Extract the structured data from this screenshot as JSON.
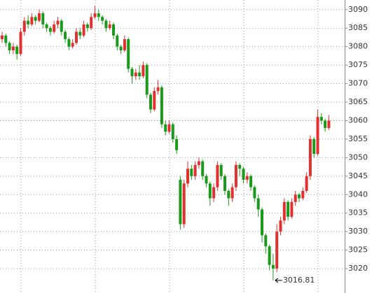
{
  "chart_data": {
    "type": "candlestick",
    "up_color": "#e03030",
    "down_color": "#1a9a1a",
    "ylim": [
      3013.4,
      3092.6
    ],
    "yticks": [
      3020,
      3025,
      3030,
      3035,
      3040,
      3045,
      3050,
      3055,
      3060,
      3065,
      3070,
      3075,
      3080,
      3085,
      3090
    ],
    "grid": true,
    "open": [
      3082,
      3083,
      3081,
      3079,
      3080,
      3078,
      3084,
      3087,
      3086,
      3088,
      3087,
      3089,
      3086,
      3085,
      3084,
      3086,
      3087,
      3084,
      3082,
      3080,
      3081,
      3084,
      3083,
      3086,
      3085,
      3088,
      3089,
      3088,
      3087,
      3085,
      3086,
      3083,
      3080,
      3079,
      3082,
      3074,
      3072,
      3073,
      3072,
      3075,
      3067,
      3063,
      3068,
      3069,
      3059,
      3057,
      3059,
      3055,
      3044,
      3032,
      3043,
      3047,
      3045,
      3048,
      3049,
      3045,
      3043,
      3039,
      3042,
      3048,
      3045,
      3041,
      3039,
      3042,
      3048,
      3047,
      3044,
      3045,
      3042,
      3039,
      3036,
      3029,
      3026,
      3021,
      3020,
      3030,
      3033,
      3038,
      3034,
      3038,
      3040,
      3039,
      3041,
      3045,
      3055,
      3051,
      3061,
      3060,
      3058
    ],
    "high": [
      3084,
      3083.5,
      3081.5,
      3081,
      3080.5,
      3085,
      3088,
      3088.5,
      3089,
      3088.5,
      3090,
      3089.5,
      3086.5,
      3085.5,
      3087,
      3088,
      3087.5,
      3084.5,
      3082.5,
      3082,
      3085,
      3085,
      3087,
      3086.5,
      3089,
      3091,
      3090,
      3088.5,
      3087.5,
      3087,
      3086.5,
      3083.5,
      3080.5,
      3083,
      3082.5,
      3074.5,
      3074,
      3075,
      3076,
      3075.5,
      3067.5,
      3069,
      3071,
      3069.5,
      3060,
      3060,
      3059.5,
      3056,
      3045,
      3044,
      3049,
      3048,
      3049,
      3050,
      3049.5,
      3045.5,
      3043.5,
      3043,
      3049,
      3048.5,
      3045.5,
      3041.5,
      3043,
      3049,
      3048.5,
      3047.5,
      3046,
      3045.5,
      3042.5,
      3040,
      3036.5,
      3029.5,
      3026.5,
      3024,
      3032,
      3034,
      3039,
      3038.5,
      3039,
      3041,
      3040.5,
      3042,
      3046,
      3056,
      3055.5,
      3063,
      3062,
      3060.5,
      3061.5
    ],
    "low": [
      3081,
      3080,
      3078,
      3078,
      3076.5,
      3077.5,
      3083,
      3085,
      3085.5,
      3086,
      3086.5,
      3085,
      3084,
      3083,
      3083.5,
      3085,
      3083,
      3081,
      3079,
      3079.5,
      3080.5,
      3082,
      3082.5,
      3084,
      3084.5,
      3087.5,
      3087,
      3086,
      3084,
      3084.5,
      3082,
      3079,
      3078,
      3078.5,
      3073,
      3070,
      3071,
      3071,
      3071.5,
      3066,
      3062,
      3062.5,
      3067,
      3058,
      3056,
      3056.5,
      3054,
      3051,
      3030.5,
      3031,
      3042,
      3044,
      3044,
      3047,
      3044,
      3042,
      3037,
      3038,
      3041,
      3044,
      3040,
      3037,
      3038,
      3041,
      3045,
      3043,
      3043,
      3041,
      3038,
      3034,
      3027,
      3024,
      3019.5,
      3016.81,
      3019,
      3029,
      3032,
      3033,
      3033.5,
      3037,
      3038,
      3038.5,
      3040.5,
      3044,
      3050,
      3050.5,
      3059,
      3057,
      3057.5
    ],
    "close": [
      3083,
      3081,
      3079,
      3080,
      3078,
      3084,
      3087,
      3086,
      3088,
      3087,
      3089,
      3086,
      3085,
      3084,
      3086,
      3087,
      3084,
      3082,
      3080,
      3081,
      3084,
      3083,
      3086,
      3085,
      3088,
      3089,
      3088,
      3087,
      3085,
      3086,
      3083,
      3080,
      3079,
      3082,
      3074,
      3072,
      3073,
      3072,
      3075,
      3067,
      3063,
      3068,
      3069,
      3059,
      3057,
      3059,
      3055,
      3052,
      3032,
      3043,
      3047,
      3045,
      3048,
      3049,
      3045,
      3043,
      3039,
      3042,
      3048,
      3045,
      3041,
      3039,
      3042,
      3048,
      3047,
      3044,
      3045,
      3042,
      3039,
      3036,
      3029,
      3026,
      3021,
      3020,
      3030,
      3033,
      3038,
      3034,
      3038,
      3040,
      3039,
      3041,
      3045,
      3055,
      3051,
      3061,
      3060,
      3058,
      3060
    ],
    "annotation_index": 73
  }
}
